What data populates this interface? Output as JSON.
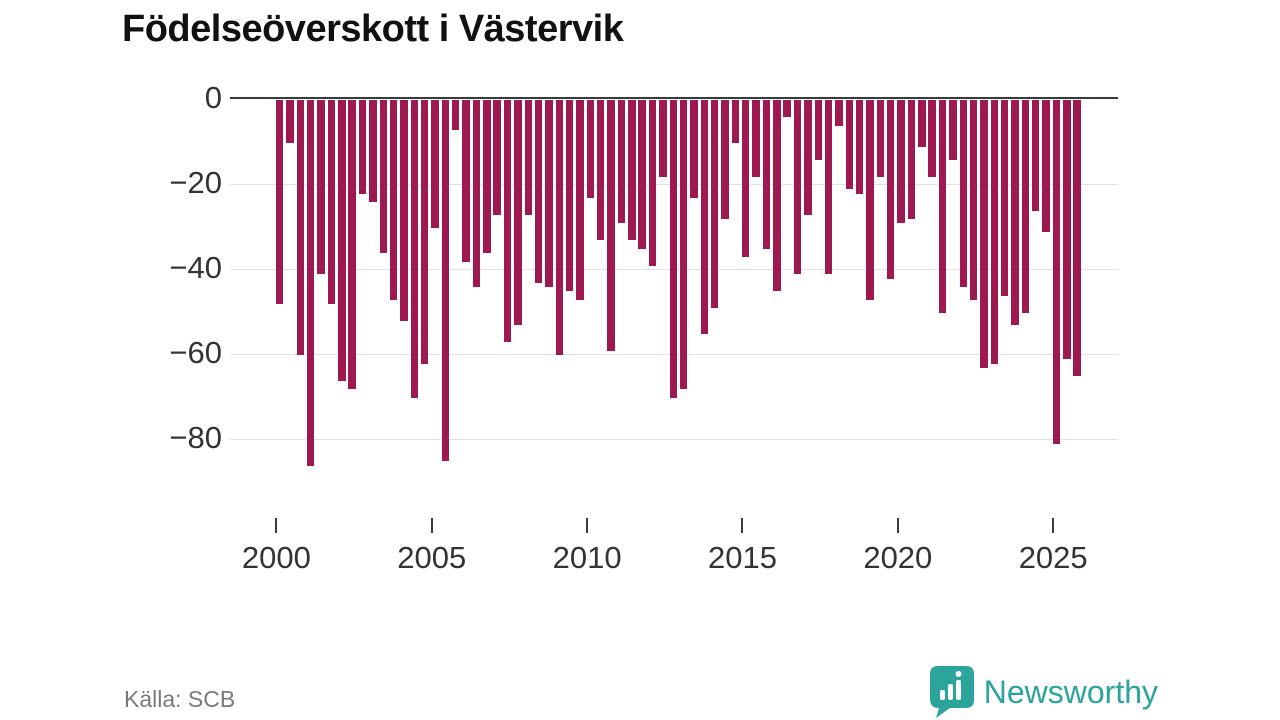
{
  "title": "Födelseöverskott i Västervik",
  "source": "Källa: SCB",
  "brand": {
    "name": "Newsworthy",
    "icon": "speech-bubble-bar-chart-icon",
    "color": "#2ba49c"
  },
  "colors": {
    "bar": "#9e194f",
    "grid": "#e2e2e2",
    "axis": "#3b3b3b",
    "tick_text": "#333333",
    "muted_text": "#7a7a7a"
  },
  "chart_data": {
    "type": "bar",
    "title": "Födelseöverskott i Västervik",
    "source": "Källa: SCB",
    "periods_per_year": 3,
    "x_tick_labels": [
      "2000",
      "2005",
      "2010",
      "2015",
      "2020",
      "2025"
    ],
    "y_ticks": [
      0,
      -20,
      -40,
      -60,
      -80
    ],
    "ylim": [
      -88,
      0
    ],
    "grid": true,
    "legend": "none",
    "x": [
      "2000-1",
      "2000-2",
      "2000-3",
      "2001-1",
      "2001-2",
      "2001-3",
      "2002-1",
      "2002-2",
      "2002-3",
      "2003-1",
      "2003-2",
      "2003-3",
      "2004-1",
      "2004-2",
      "2004-3",
      "2005-1",
      "2005-2",
      "2005-3",
      "2006-1",
      "2006-2",
      "2006-3",
      "2007-1",
      "2007-2",
      "2007-3",
      "2008-1",
      "2008-2",
      "2008-3",
      "2009-1",
      "2009-2",
      "2009-3",
      "2010-1",
      "2010-2",
      "2010-3",
      "2011-1",
      "2011-2",
      "2011-3",
      "2012-1",
      "2012-2",
      "2012-3",
      "2013-1",
      "2013-2",
      "2013-3",
      "2014-1",
      "2014-2",
      "2014-3",
      "2015-1",
      "2015-2",
      "2015-3",
      "2016-1",
      "2016-2",
      "2016-3",
      "2017-1",
      "2017-2",
      "2017-3",
      "2018-1",
      "2018-2",
      "2018-3",
      "2019-1",
      "2019-2",
      "2019-3",
      "2020-1",
      "2020-2",
      "2020-3",
      "2021-1",
      "2021-2",
      "2021-3",
      "2022-1",
      "2022-2",
      "2022-3",
      "2023-1",
      "2023-2",
      "2023-3",
      "2024-1",
      "2024-2",
      "2024-3",
      "2025-1",
      "2025-2",
      "2025-3"
    ],
    "values": [
      -48,
      -10,
      -60,
      -86,
      -41,
      -48,
      -66,
      -68,
      -22,
      -24,
      -36,
      -47,
      -52,
      -70,
      -62,
      -30,
      -85,
      -7,
      -38,
      -44,
      -36,
      -27,
      -57,
      -53,
      -27,
      -43,
      -44,
      -60,
      -45,
      -47,
      -23,
      -33,
      -59,
      -29,
      -33,
      -35,
      -39,
      -18,
      -70,
      -68,
      -23,
      -55,
      -49,
      -28,
      -10,
      -37,
      -18,
      -35,
      -45,
      -4,
      -41,
      -27,
      -14,
      -41,
      -6,
      -21,
      -22,
      -47,
      -18,
      -42,
      -29,
      -28,
      -11,
      -18,
      -50,
      -14,
      -44,
      -47,
      -63,
      -62,
      -46,
      -53,
      -50,
      -26,
      -31,
      -81,
      -61,
      -65
    ]
  }
}
